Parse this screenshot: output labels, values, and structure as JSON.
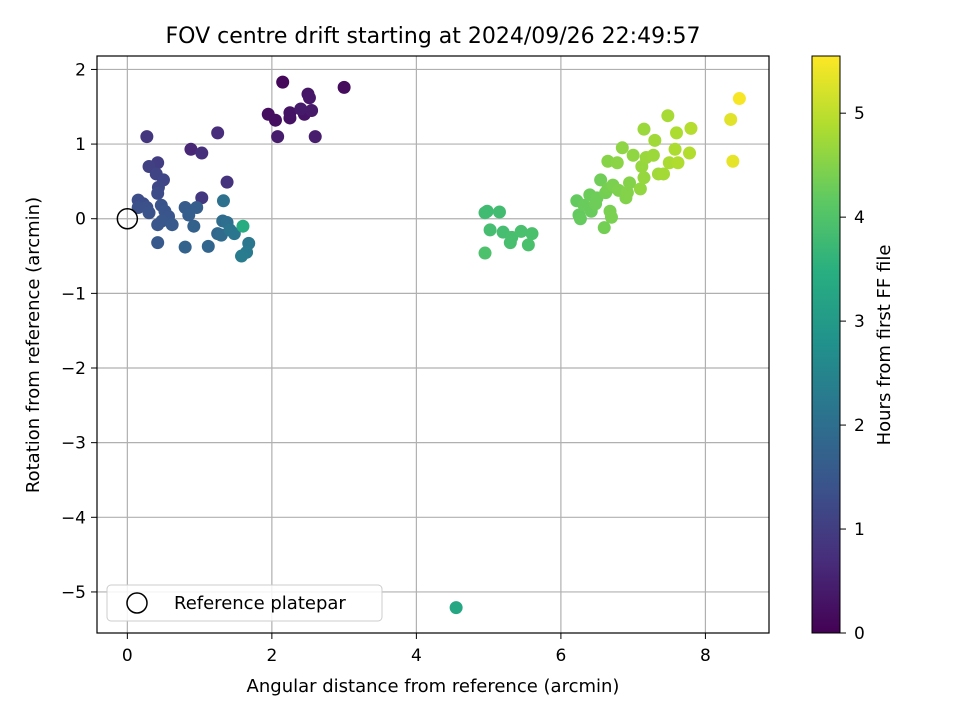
{
  "chart_data": {
    "type": "scatter",
    "title": "FOV centre drift starting at 2024/09/26 22:49:57",
    "xlabel": "Angular distance from reference (arcmin)",
    "ylabel": "Rotation from reference (arcmin)",
    "xlim": [
      -0.42,
      8.88
    ],
    "ylim": [
      -5.55,
      2.18
    ],
    "xticks": [
      0,
      2,
      4,
      6,
      8
    ],
    "yticks": [
      -5,
      -4,
      -3,
      -2,
      -1,
      0,
      1,
      2
    ],
    "xtick_labels": [
      "0",
      "2",
      "4",
      "6",
      "8"
    ],
    "ytick_labels": [
      "−5",
      "−4",
      "−3",
      "−2",
      "−1",
      "0",
      "1",
      "2"
    ],
    "grid": true,
    "legend": {
      "placement": "lower-left",
      "label": "Reference platepar"
    },
    "reference_point": {
      "x": 0.0,
      "y": 0.0
    },
    "colorbar": {
      "label": "Hours from first FF file",
      "range": [
        0,
        5.55
      ],
      "ticks": [
        0,
        1,
        2,
        3,
        4,
        5
      ],
      "tick_labels": [
        "0",
        "1",
        "2",
        "3",
        "4",
        "5"
      ],
      "colormap": "viridis"
    },
    "points": [
      {
        "x": 2.15,
        "y": 1.83,
        "c": 0.1
      },
      {
        "x": 3.0,
        "y": 1.76,
        "c": 0.15
      },
      {
        "x": 1.95,
        "y": 1.4,
        "c": 0.2
      },
      {
        "x": 2.05,
        "y": 1.32,
        "c": 0.22
      },
      {
        "x": 2.25,
        "y": 1.35,
        "c": 0.25
      },
      {
        "x": 2.25,
        "y": 1.42,
        "c": 0.28
      },
      {
        "x": 2.45,
        "y": 1.4,
        "c": 0.3
      },
      {
        "x": 2.5,
        "y": 1.67,
        "c": 0.32
      },
      {
        "x": 2.52,
        "y": 1.62,
        "c": 0.35
      },
      {
        "x": 2.55,
        "y": 1.45,
        "c": 0.38
      },
      {
        "x": 2.4,
        "y": 1.47,
        "c": 0.4
      },
      {
        "x": 2.08,
        "y": 1.1,
        "c": 0.42
      },
      {
        "x": 2.6,
        "y": 1.1,
        "c": 0.45
      },
      {
        "x": 0.88,
        "y": 0.93,
        "c": 0.6
      },
      {
        "x": 1.25,
        "y": 1.15,
        "c": 0.7
      },
      {
        "x": 1.03,
        "y": 0.88,
        "c": 0.75
      },
      {
        "x": 0.27,
        "y": 1.1,
        "c": 0.85
      },
      {
        "x": 1.38,
        "y": 0.49,
        "c": 0.8
      },
      {
        "x": 1.03,
        "y": 0.28,
        "c": 0.9
      },
      {
        "x": 0.42,
        "y": 0.75,
        "c": 1.0
      },
      {
        "x": 0.3,
        "y": 0.7,
        "c": 1.05
      },
      {
        "x": 0.4,
        "y": 0.6,
        "c": 1.1
      },
      {
        "x": 0.5,
        "y": 0.52,
        "c": 1.15
      },
      {
        "x": 0.43,
        "y": 0.42,
        "c": 1.2
      },
      {
        "x": 0.42,
        "y": 0.34,
        "c": 1.25
      },
      {
        "x": 0.15,
        "y": 0.25,
        "c": 1.3
      },
      {
        "x": 0.22,
        "y": 0.2,
        "c": 1.3
      },
      {
        "x": 0.15,
        "y": 0.15,
        "c": 1.35
      },
      {
        "x": 0.27,
        "y": 0.15,
        "c": 1.35
      },
      {
        "x": 0.3,
        "y": 0.08,
        "c": 1.4
      },
      {
        "x": 0.47,
        "y": 0.18,
        "c": 1.4
      },
      {
        "x": 0.52,
        "y": 0.1,
        "c": 1.45
      },
      {
        "x": 0.57,
        "y": 0.03,
        "c": 1.45
      },
      {
        "x": 0.48,
        "y": -0.03,
        "c": 1.5
      },
      {
        "x": 0.42,
        "y": -0.08,
        "c": 1.5
      },
      {
        "x": 0.62,
        "y": -0.08,
        "c": 1.55
      },
      {
        "x": 0.42,
        "y": -0.32,
        "c": 1.55
      },
      {
        "x": 0.8,
        "y": 0.15,
        "c": 1.6
      },
      {
        "x": 0.96,
        "y": 0.15,
        "c": 1.65
      },
      {
        "x": 0.85,
        "y": 0.05,
        "c": 1.65
      },
      {
        "x": 0.92,
        "y": -0.1,
        "c": 1.7
      },
      {
        "x": 0.8,
        "y": -0.38,
        "c": 1.75
      },
      {
        "x": 1.12,
        "y": -0.37,
        "c": 1.8
      },
      {
        "x": 1.25,
        "y": -0.2,
        "c": 1.85
      },
      {
        "x": 1.3,
        "y": -0.22,
        "c": 1.9
      },
      {
        "x": 1.32,
        "y": -0.03,
        "c": 1.95
      },
      {
        "x": 1.38,
        "y": -0.05,
        "c": 2.0
      },
      {
        "x": 1.33,
        "y": 0.24,
        "c": 2.05
      },
      {
        "x": 1.42,
        "y": -0.15,
        "c": 2.1
      },
      {
        "x": 1.48,
        "y": -0.2,
        "c": 2.15
      },
      {
        "x": 1.68,
        "y": -0.33,
        "c": 2.2
      },
      {
        "x": 1.65,
        "y": -0.45,
        "c": 2.25
      },
      {
        "x": 1.58,
        "y": -0.5,
        "c": 2.3
      },
      {
        "x": 1.6,
        "y": -0.1,
        "c": 3.4
      },
      {
        "x": 4.55,
        "y": -5.21,
        "c": 3.3
      },
      {
        "x": 4.95,
        "y": 0.08,
        "c": 3.8
      },
      {
        "x": 4.98,
        "y": 0.1,
        "c": 3.8
      },
      {
        "x": 5.15,
        "y": 0.09,
        "c": 3.82
      },
      {
        "x": 5.02,
        "y": -0.15,
        "c": 3.85
      },
      {
        "x": 5.2,
        "y": -0.18,
        "c": 3.85
      },
      {
        "x": 5.32,
        "y": -0.25,
        "c": 3.88
      },
      {
        "x": 5.3,
        "y": -0.32,
        "c": 3.88
      },
      {
        "x": 5.45,
        "y": -0.17,
        "c": 3.9
      },
      {
        "x": 5.6,
        "y": -0.2,
        "c": 3.92
      },
      {
        "x": 5.55,
        "y": -0.35,
        "c": 3.92
      },
      {
        "x": 4.95,
        "y": -0.46,
        "c": 3.95
      },
      {
        "x": 6.22,
        "y": 0.24,
        "c": 4.2
      },
      {
        "x": 6.25,
        "y": 0.05,
        "c": 4.2
      },
      {
        "x": 6.27,
        "y": 0.0,
        "c": 4.22
      },
      {
        "x": 6.32,
        "y": 0.18,
        "c": 4.25
      },
      {
        "x": 6.42,
        "y": 0.1,
        "c": 4.25
      },
      {
        "x": 6.4,
        "y": 0.32,
        "c": 4.28
      },
      {
        "x": 6.48,
        "y": 0.2,
        "c": 4.3
      },
      {
        "x": 6.5,
        "y": 0.28,
        "c": 4.3
      },
      {
        "x": 6.55,
        "y": 0.52,
        "c": 4.32
      },
      {
        "x": 6.6,
        "y": -0.12,
        "c": 4.35
      },
      {
        "x": 6.62,
        "y": 0.35,
        "c": 4.35
      },
      {
        "x": 6.65,
        "y": 0.4,
        "c": 4.38
      },
      {
        "x": 6.68,
        "y": 0.1,
        "c": 4.4
      },
      {
        "x": 6.7,
        "y": 0.02,
        "c": 4.4
      },
      {
        "x": 6.72,
        "y": 0.45,
        "c": 4.42
      },
      {
        "x": 6.8,
        "y": 0.38,
        "c": 4.45
      },
      {
        "x": 6.9,
        "y": 0.28,
        "c": 4.48
      },
      {
        "x": 6.92,
        "y": 0.35,
        "c": 4.5
      },
      {
        "x": 6.95,
        "y": 0.48,
        "c": 4.5
      },
      {
        "x": 6.65,
        "y": 0.77,
        "c": 4.52
      },
      {
        "x": 6.78,
        "y": 0.75,
        "c": 4.55
      },
      {
        "x": 6.85,
        "y": 0.95,
        "c": 4.58
      },
      {
        "x": 7.0,
        "y": 0.85,
        "c": 4.6
      },
      {
        "x": 7.1,
        "y": 0.4,
        "c": 4.62
      },
      {
        "x": 7.12,
        "y": 0.7,
        "c": 4.65
      },
      {
        "x": 7.15,
        "y": 0.55,
        "c": 4.65
      },
      {
        "x": 7.18,
        "y": 0.82,
        "c": 4.68
      },
      {
        "x": 7.15,
        "y": 1.2,
        "c": 4.7
      },
      {
        "x": 7.28,
        "y": 0.85,
        "c": 4.72
      },
      {
        "x": 7.3,
        "y": 1.05,
        "c": 4.75
      },
      {
        "x": 7.35,
        "y": 0.6,
        "c": 4.75
      },
      {
        "x": 7.42,
        "y": 0.6,
        "c": 4.78
      },
      {
        "x": 7.48,
        "y": 1.38,
        "c": 4.8
      },
      {
        "x": 7.5,
        "y": 0.75,
        "c": 4.82
      },
      {
        "x": 7.58,
        "y": 0.93,
        "c": 4.85
      },
      {
        "x": 7.6,
        "y": 1.15,
        "c": 4.85
      },
      {
        "x": 7.62,
        "y": 0.75,
        "c": 4.88
      },
      {
        "x": 7.78,
        "y": 0.88,
        "c": 4.9
      },
      {
        "x": 7.8,
        "y": 1.21,
        "c": 4.92
      },
      {
        "x": 8.35,
        "y": 1.33,
        "c": 5.3
      },
      {
        "x": 8.38,
        "y": 0.77,
        "c": 5.35
      },
      {
        "x": 8.47,
        "y": 1.61,
        "c": 5.5
      }
    ]
  }
}
